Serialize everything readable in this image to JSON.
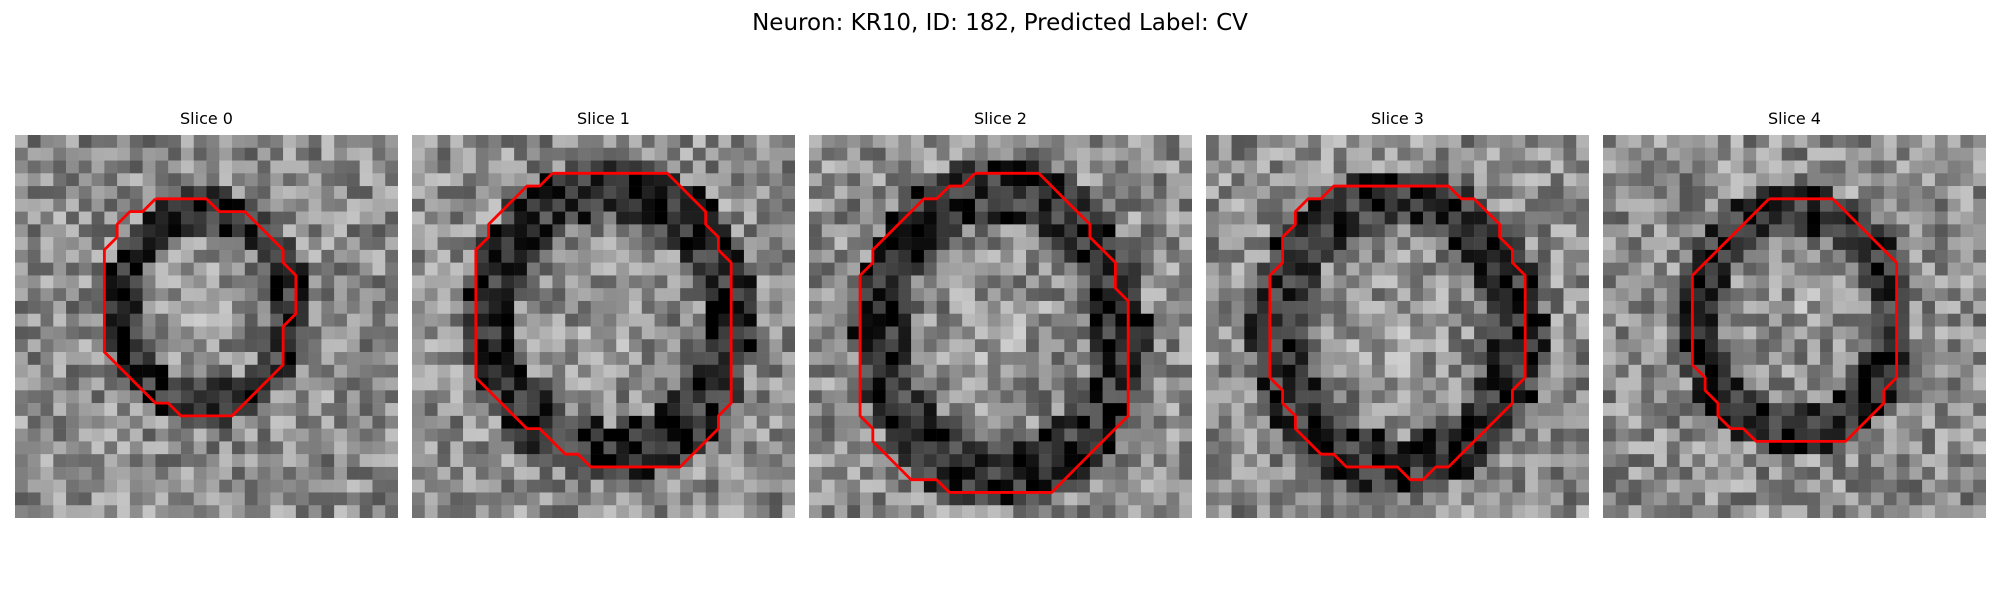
{
  "figure": {
    "title": "Neuron: KR10, ID: 182, Predicted Label: CV"
  },
  "panels": [
    {
      "title": "Slice 0",
      "contour_color": "#ff0000"
    },
    {
      "title": "Slice 1",
      "contour_color": "#ff0000"
    },
    {
      "title": "Slice 2",
      "contour_color": "#ff0000"
    },
    {
      "title": "Slice 3",
      "contour_color": "#ff0000"
    },
    {
      "title": "Slice 4",
      "contour_color": "#ff0000"
    }
  ]
}
